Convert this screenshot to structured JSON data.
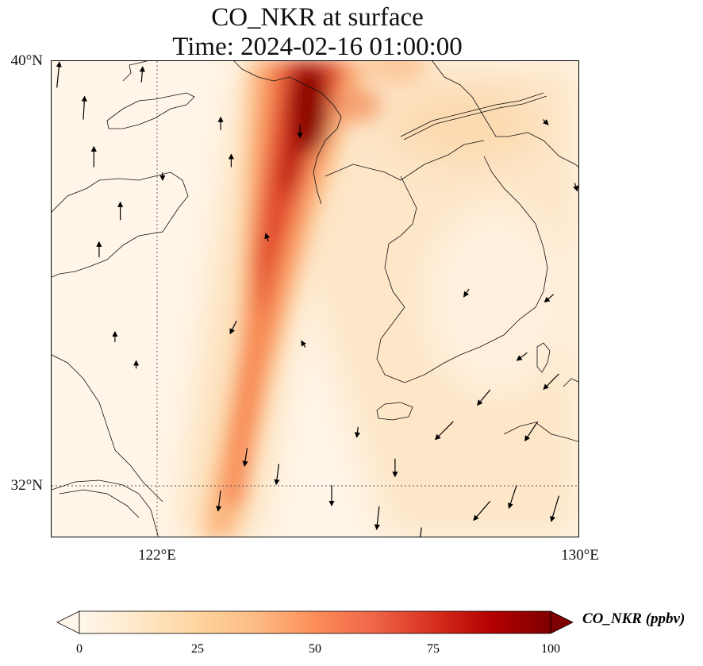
{
  "title": {
    "line1": "CO_NKR at surface",
    "line2": "Time: 2024-02-16 01:00:00"
  },
  "axes": {
    "y_ticks": [
      "40°N",
      "32°N"
    ],
    "x_ticks": [
      "122°E",
      "130°E"
    ],
    "lon_range": [
      120,
      130
    ],
    "lat_range": [
      31,
      40
    ],
    "gridlines": "dotted at 122°E and 32°N"
  },
  "colorbar": {
    "label": "CO_NKR (ppbv)",
    "ticks": [
      "0",
      "25",
      "50",
      "75",
      "100"
    ],
    "min": 0,
    "max": 100,
    "extend": "both",
    "colormap": "OrRd",
    "colors": [
      "#fff7ec",
      "#fee8c8",
      "#fdd49e",
      "#fdbb84",
      "#fc8d59",
      "#ef6548",
      "#d7301f",
      "#b30000",
      "#7f0000"
    ]
  },
  "plume": {
    "description_values": "peak near 124.5°E,40°N extending SSW to ~123°E,31°N",
    "peak_ppbv": 100,
    "background_ppbv": 12
  },
  "wind": {
    "arrow_color": "#000000",
    "vectors": [
      {
        "lon": 120.1,
        "lat": 39.5,
        "u": 0.2,
        "v": 2.0
      },
      {
        "lon": 120.6,
        "lat": 38.9,
        "u": 0.1,
        "v": 1.8
      },
      {
        "lon": 120.8,
        "lat": 38.0,
        "u": 0.0,
        "v": 1.6
      },
      {
        "lon": 121.3,
        "lat": 37.0,
        "u": 0.0,
        "v": 1.4
      },
      {
        "lon": 120.9,
        "lat": 36.3,
        "u": 0.0,
        "v": 1.2
      },
      {
        "lon": 121.7,
        "lat": 39.6,
        "u": 0.1,
        "v": 1.2
      },
      {
        "lon": 121.2,
        "lat": 34.7,
        "u": 0.0,
        "v": 0.8
      },
      {
        "lon": 121.6,
        "lat": 34.2,
        "u": 0.0,
        "v": 0.6
      },
      {
        "lon": 123.2,
        "lat": 38.7,
        "u": 0.0,
        "v": 1.0
      },
      {
        "lon": 123.4,
        "lat": 38.0,
        "u": 0.0,
        "v": 1.0
      },
      {
        "lon": 124.1,
        "lat": 36.6,
        "u": -0.2,
        "v": 0.6
      },
      {
        "lon": 124.7,
        "lat": 38.8,
        "u": 0.0,
        "v": -1.0
      },
      {
        "lon": 123.7,
        "lat": 32.7,
        "u": -0.2,
        "v": -1.4
      },
      {
        "lon": 124.3,
        "lat": 32.4,
        "u": -0.2,
        "v": -1.6
      },
      {
        "lon": 123.2,
        "lat": 31.9,
        "u": -0.2,
        "v": -1.6
      },
      {
        "lon": 125.3,
        "lat": 32.0,
        "u": 0.0,
        "v": -1.6
      },
      {
        "lon": 126.2,
        "lat": 31.6,
        "u": -0.2,
        "v": -1.8
      },
      {
        "lon": 126.5,
        "lat": 32.5,
        "u": 0.0,
        "v": -1.4
      },
      {
        "lon": 127.0,
        "lat": 31.2,
        "u": -0.2,
        "v": -1.6
      },
      {
        "lon": 127.6,
        "lat": 33.2,
        "u": -1.4,
        "v": -1.4
      },
      {
        "lon": 128.3,
        "lat": 31.7,
        "u": -1.3,
        "v": -1.5
      },
      {
        "lon": 128.8,
        "lat": 32.0,
        "u": -0.6,
        "v": -1.8
      },
      {
        "lon": 129.6,
        "lat": 31.8,
        "u": -0.6,
        "v": -2.0
      },
      {
        "lon": 129.2,
        "lat": 33.2,
        "u": -1.0,
        "v": -1.5
      },
      {
        "lon": 129.6,
        "lat": 34.1,
        "u": -1.2,
        "v": -1.2
      },
      {
        "lon": 129.0,
        "lat": 34.5,
        "u": -0.8,
        "v": -0.6
      },
      {
        "lon": 128.3,
        "lat": 33.8,
        "u": -1.0,
        "v": -1.2
      },
      {
        "lon": 129.3,
        "lat": 38.9,
        "u": 0.4,
        "v": -0.4
      },
      {
        "lon": 129.9,
        "lat": 37.7,
        "u": 0.2,
        "v": -0.6
      },
      {
        "lon": 122.1,
        "lat": 37.9,
        "u": 0.0,
        "v": -0.6
      },
      {
        "lon": 123.5,
        "lat": 35.1,
        "u": -0.5,
        "v": -1.0
      },
      {
        "lon": 124.8,
        "lat": 34.6,
        "u": -0.3,
        "v": 0.5
      },
      {
        "lon": 125.8,
        "lat": 33.1,
        "u": -0.1,
        "v": -0.8
      },
      {
        "lon": 127.9,
        "lat": 35.7,
        "u": -0.4,
        "v": -0.6
      },
      {
        "lon": 129.5,
        "lat": 35.6,
        "u": -0.7,
        "v": -0.6
      }
    ]
  }
}
